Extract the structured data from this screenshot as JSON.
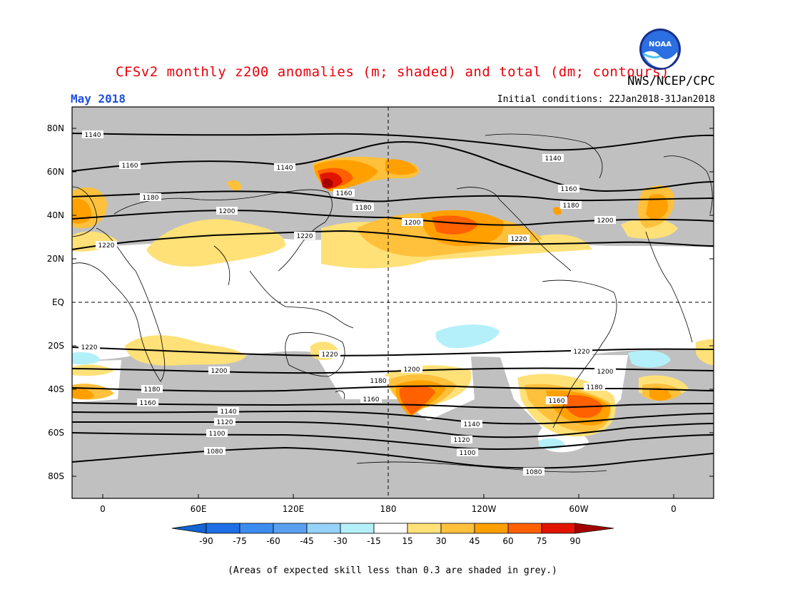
{
  "title": "CFSv2 monthly z200 anomalies (m; shaded) and total (dm; contours)",
  "agency": "NWS/NCEP/CPC",
  "month": "May 2018",
  "initial_conditions": "Initial conditions: 22Jan2018-31Jan2018",
  "logo_text": "NOAA",
  "lat_labels": [
    "80N",
    "60N",
    "40N",
    "20N",
    "EQ",
    "20S",
    "40S",
    "60S",
    "80S"
  ],
  "lon_labels": [
    "0",
    "60E",
    "120E",
    "180",
    "120W",
    "60W",
    "0"
  ],
  "colorbar": {
    "labels": [
      "-90",
      "-75",
      "-60",
      "-45",
      "-30",
      "-15",
      "15",
      "30",
      "45",
      "60",
      "75",
      "90"
    ],
    "colors": [
      "#1464d2",
      "#1e6ee6",
      "#3c8cf0",
      "#5aa0f0",
      "#96d2fa",
      "#b4f0fa",
      "#ffffff",
      "#ffe178",
      "#ffc03c",
      "#ffa000",
      "#ff6000",
      "#e11400",
      "#a50000"
    ]
  },
  "contour_labels": [
    "1140",
    "1160",
    "1180",
    "1200",
    "1220",
    "1120",
    "1100",
    "1080"
  ],
  "note": "(Areas of expected skill less than 0.3 are shaded in grey.)",
  "colors": {
    "title": "#e8000b",
    "month": "#1f4fdc",
    "skill_grey": "#c0c0c0",
    "ocean": "#ffffff"
  }
}
